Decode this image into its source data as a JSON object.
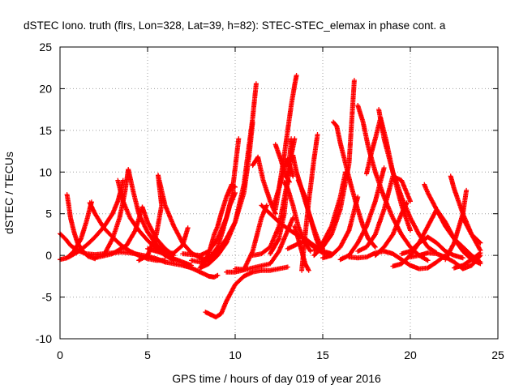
{
  "chart_data": {
    "type": "scatter",
    "title": "dSTEC Iono. truth (flrs, Lon=328, Lat=39, h=82): STEC-STEC_elemax in phase cont. a",
    "xlabel": "GPS time / hours of day 019 of year 2016",
    "ylabel": "dSTEC  / TECUs",
    "xlim": [
      0,
      25
    ],
    "ylim": [
      -10,
      25
    ],
    "xticks": [
      0,
      5,
      10,
      15,
      20,
      25
    ],
    "yticks": [
      -10,
      -5,
      0,
      5,
      10,
      15,
      20,
      25
    ],
    "xtick_labels": [
      "0",
      "5",
      "10",
      "15",
      "20",
      "25"
    ],
    "ytick_labels": [
      "-10",
      "-5",
      "0",
      "5",
      "10",
      "15",
      "20",
      "25"
    ],
    "grid": true,
    "marker": "+",
    "series_color": "#ff0000",
    "arcs": [
      {
        "x": [
          0.0,
          0.3,
          0.6,
          1.0,
          1.5,
          2.0,
          2.5,
          3.0,
          3.5,
          4.0,
          4.5,
          5.0,
          5.5,
          6.0
        ],
        "y": [
          2.6,
          2.0,
          1.2,
          0.6,
          0.2,
          0.1,
          0.2,
          0.3,
          0.4,
          0.3,
          0.1,
          -0.1,
          -0.4,
          -0.8
        ]
      },
      {
        "x": [
          0.4,
          0.5,
          0.6,
          0.8,
          1.0,
          1.3,
          1.6,
          2.0
        ],
        "y": [
          7.3,
          6.0,
          4.5,
          2.8,
          1.5,
          0.5,
          -0.1,
          -0.4
        ]
      },
      {
        "x": [
          0.0,
          0.4,
          0.8,
          1.2,
          1.5,
          1.7,
          1.8
        ],
        "y": [
          -0.5,
          -0.3,
          0.5,
          2.0,
          4.0,
          5.6,
          6.4
        ]
      },
      {
        "x": [
          1.7,
          2.0,
          2.5,
          3.0,
          3.5,
          4.0,
          4.5,
          5.0,
          5.5,
          6.0
        ],
        "y": [
          6.3,
          5.0,
          3.3,
          2.2,
          1.2,
          0.5,
          0.0,
          -0.4,
          -0.6,
          -0.6
        ]
      },
      {
        "x": [
          0.5,
          1.0,
          1.5,
          2.0,
          2.5,
          3.0,
          3.3,
          3.5,
          3.6
        ],
        "y": [
          -0.2,
          0.4,
          1.2,
          2.2,
          3.4,
          5.0,
          6.5,
          8.0,
          9.0
        ]
      },
      {
        "x": [
          3.3,
          3.6,
          4.0,
          4.5,
          5.0,
          5.5,
          6.0,
          6.5
        ],
        "y": [
          9.0,
          6.5,
          4.5,
          3.0,
          1.8,
          0.8,
          0.0,
          -0.6
        ]
      },
      {
        "x": [
          2.5,
          3.0,
          3.4,
          3.7,
          3.9
        ],
        "y": [
          0.0,
          2.0,
          4.5,
          7.5,
          10.3
        ]
      },
      {
        "x": [
          3.9,
          4.2,
          4.5,
          5.0,
          5.5,
          6.0,
          6.5,
          7.0,
          7.5
        ],
        "y": [
          10.3,
          7.5,
          5.0,
          2.8,
          1.3,
          0.3,
          -0.4,
          -0.8,
          -1.2
        ]
      },
      {
        "x": [
          2.0,
          3.0,
          3.8,
          4.3,
          4.7
        ],
        "y": [
          -0.3,
          0.2,
          1.2,
          3.0,
          5.8
        ]
      },
      {
        "x": [
          4.7,
          5.0,
          5.5,
          6.0,
          6.5
        ],
        "y": [
          5.8,
          4.0,
          2.0,
          0.8,
          0.0
        ]
      },
      {
        "x": [
          4.5,
          5.0,
          5.5,
          5.8,
          5.6
        ],
        "y": [
          -0.6,
          0.0,
          2.5,
          6.0,
          9.6
        ]
      },
      {
        "x": [
          5.6,
          6.0,
          6.5,
          7.0,
          7.5,
          8.0,
          8.5
        ],
        "y": [
          9.6,
          6.0,
          3.5,
          1.5,
          0.3,
          -0.3,
          -0.6
        ]
      },
      {
        "x": [
          5.0,
          5.5,
          6.0,
          6.5,
          7.0,
          7.3
        ],
        "y": [
          0.8,
          0.5,
          0.2,
          0.3,
          1.2,
          3.3
        ]
      },
      {
        "x": [
          6.0,
          6.5,
          7.0,
          7.5,
          8.0,
          8.5,
          8.8,
          9.0
        ],
        "y": [
          -0.8,
          -1.0,
          -1.2,
          -1.5,
          -2.0,
          -2.5,
          -2.6,
          -2.4
        ]
      },
      {
        "x": [
          7.5,
          8.0,
          8.5,
          9.0,
          9.3,
          9.7,
          10.0
        ],
        "y": [
          -0.6,
          -0.8,
          -0.5,
          1.0,
          3.0,
          6.0,
          7.5
        ]
      },
      {
        "x": [
          7.0,
          8.0,
          8.5,
          9.0,
          9.5,
          9.8,
          10.0,
          10.2
        ],
        "y": [
          0.2,
          0.0,
          0.5,
          2.0,
          4.5,
          7.0,
          10.5,
          14.0
        ]
      },
      {
        "x": [
          8.0,
          8.5,
          9.0,
          9.5,
          10.0,
          10.5,
          11.0,
          11.2
        ],
        "y": [
          -1.5,
          -1.0,
          0.0,
          1.5,
          4.0,
          8.5,
          16.5,
          20.6
        ]
      },
      {
        "x": [
          8.5,
          9.0,
          9.5,
          10.0,
          10.5,
          10.8,
          11.0
        ],
        "y": [
          -0.8,
          0.5,
          2.0,
          4.0,
          7.5,
          12.0,
          16.0
        ]
      },
      {
        "x": [
          8.0,
          8.5,
          8.8,
          9.0,
          9.2,
          9.5,
          9.8,
          10.0
        ],
        "y": [
          -1.5,
          0.2,
          2.5,
          3.5,
          5.0,
          7.0,
          8.5,
          8.2
        ]
      },
      {
        "x": [
          8.3,
          8.6,
          8.9,
          9.2,
          9.5,
          10.0,
          10.5,
          11.0,
          11.5,
          12.0,
          12.5,
          13.0
        ],
        "y": [
          -6.8,
          -7.1,
          -7.4,
          -7.0,
          -5.5,
          -3.5,
          -2.5,
          -2.0,
          -1.8,
          -1.8,
          -1.6,
          -1.4
        ]
      },
      {
        "x": [
          9.5,
          10.0,
          11.0,
          12.0,
          12.5,
          13.0,
          13.3
        ],
        "y": [
          -2.0,
          -2.0,
          -1.5,
          -1.0,
          0.5,
          3.0,
          4.5
        ]
      },
      {
        "x": [
          10.0,
          10.5,
          11.0,
          11.5,
          11.8
        ],
        "y": [
          -1.6,
          -1.7,
          0.5,
          4.5,
          6.0
        ]
      },
      {
        "x": [
          11.0,
          11.3,
          11.6,
          12.0,
          12.3
        ],
        "y": [
          10.8,
          11.8,
          9.0,
          6.5,
          5.0
        ]
      },
      {
        "x": [
          11.5,
          12.0,
          12.5,
          13.0,
          13.5,
          14.0,
          14.5,
          15.0,
          15.5
        ],
        "y": [
          6.0,
          5.0,
          4.0,
          3.2,
          2.5,
          2.0,
          1.2,
          0.5,
          0.2
        ]
      },
      {
        "x": [
          11.0,
          11.5,
          12.0,
          12.5,
          13.0,
          13.2
        ],
        "y": [
          0.0,
          0.2,
          1.0,
          3.5,
          9.0,
          14.0
        ]
      },
      {
        "x": [
          12.3,
          12.5,
          12.8,
          13.0,
          13.2,
          13.4,
          13.5
        ],
        "y": [
          5.5,
          8.0,
          12.0,
          15.0,
          18.0,
          20.5,
          21.6
        ]
      },
      {
        "x": [
          12.0,
          12.5,
          12.8,
          13.0,
          13.2,
          13.4
        ],
        "y": [
          0.2,
          2.0,
          5.0,
          9.0,
          12.0,
          14.0
        ]
      },
      {
        "x": [
          12.3,
          12.6,
          12.9,
          13.1
        ],
        "y": [
          13.3,
          11.5,
          9.5,
          8.8
        ]
      },
      {
        "x": [
          12.2,
          12.5,
          12.8,
          13.0,
          13.3
        ],
        "y": [
          6.0,
          8.0,
          10.5,
          11.6,
          9.5
        ]
      },
      {
        "x": [
          12.8,
          13.0,
          13.3,
          13.6,
          14.0,
          14.3
        ],
        "y": [
          8.8,
          8.0,
          6.0,
          3.5,
          1.5,
          0.5
        ]
      },
      {
        "x": [
          13.3,
          13.5,
          14.0,
          14.3,
          14.6,
          14.8
        ],
        "y": [
          12.0,
          10.0,
          6.5,
          4.5,
          2.2,
          1.0
        ]
      },
      {
        "x": [
          13.4,
          13.6,
          13.8,
          14.0,
          14.2
        ],
        "y": [
          3.5,
          2.0,
          0.5,
          -1.0,
          -1.8
        ]
      },
      {
        "x": [
          13.0,
          13.5,
          14.0,
          14.5,
          15.0,
          15.5
        ],
        "y": [
          0.8,
          1.3,
          1.8,
          1.0,
          0.3,
          0.0
        ]
      },
      {
        "x": [
          13.6,
          14.0,
          14.2,
          14.5,
          14.8,
          15.0
        ],
        "y": [
          9.0,
          7.0,
          5.0,
          3.2,
          1.5,
          0.8
        ]
      },
      {
        "x": [
          13.8,
          14.0,
          14.2,
          14.5,
          14.7
        ],
        "y": [
          -1.8,
          2.5,
          6.5,
          11.5,
          14.5
        ]
      },
      {
        "x": [
          14.5,
          15.0,
          15.5,
          16.0,
          16.5,
          16.8
        ],
        "y": [
          0.0,
          1.0,
          2.5,
          5.5,
          11.0,
          21.0
        ]
      },
      {
        "x": [
          14.5,
          15.0,
          15.5,
          16.0,
          16.3
        ],
        "y": [
          0.6,
          1.5,
          3.5,
          7.0,
          10.0
        ]
      },
      {
        "x": [
          15.0,
          15.5,
          16.0,
          16.5,
          17.0
        ],
        "y": [
          -0.3,
          0.0,
          1.0,
          3.0,
          7.0
        ]
      },
      {
        "x": [
          15.6,
          15.8,
          16.0,
          16.3,
          16.6,
          17.0,
          17.3,
          17.6,
          18.0
        ],
        "y": [
          16.0,
          15.5,
          13.5,
          11.0,
          8.5,
          5.5,
          3.5,
          2.0,
          1.0
        ]
      },
      {
        "x": [
          16.0,
          16.5,
          17.0,
          17.5,
          18.0,
          18.5
        ],
        "y": [
          -0.5,
          0.0,
          1.5,
          3.5,
          6.5,
          10.5
        ]
      },
      {
        "x": [
          17.0,
          17.3,
          17.6,
          18.0,
          18.5,
          19.0,
          19.5,
          20.0,
          20.5,
          21.0
        ],
        "y": [
          18.0,
          16.0,
          13.0,
          10.0,
          7.0,
          4.5,
          2.5,
          1.0,
          0.0,
          -0.6
        ]
      },
      {
        "x": [
          17.5,
          17.8,
          18.0,
          18.3,
          18.6,
          19.0,
          19.5,
          20.0
        ],
        "y": [
          9.8,
          12.5,
          14.0,
          16.5,
          14.0,
          10.0,
          6.0,
          3.0
        ]
      },
      {
        "x": [
          18.2,
          18.5,
          19.0,
          19.5,
          20.0,
          20.5,
          21.0,
          21.5
        ],
        "y": [
          17.5,
          14.0,
          10.0,
          7.0,
          4.5,
          2.5,
          1.0,
          0.3
        ]
      },
      {
        "x": [
          17.0,
          17.5,
          18.0,
          18.5,
          19.0,
          19.5,
          20.0
        ],
        "y": [
          0.5,
          1.0,
          2.5,
          5.5,
          9.5,
          9.0,
          6.5
        ]
      },
      {
        "x": [
          16.5,
          17.0,
          17.5,
          18.0,
          18.5,
          19.0,
          19.5,
          20.0,
          20.5,
          21.0,
          21.5,
          22.0
        ],
        "y": [
          -0.2,
          -0.3,
          -0.2,
          0.3,
          0.5,
          0.2,
          -0.5,
          -1.2,
          -1.6,
          -1.5,
          -0.8,
          0.0
        ]
      },
      {
        "x": [
          18.0,
          18.5,
          19.0,
          19.5,
          19.8
        ],
        "y": [
          0.0,
          1.0,
          2.5,
          5.0,
          6.3
        ]
      },
      {
        "x": [
          19.0,
          19.5,
          20.0,
          20.5,
          21.0,
          21.5,
          22.0,
          22.5,
          23.0,
          23.5,
          24.0
        ],
        "y": [
          -1.3,
          -1.0,
          0.0,
          1.5,
          3.5,
          5.5,
          4.0,
          2.0,
          0.5,
          -0.5,
          -1.0
        ]
      },
      {
        "x": [
          20.8,
          21.0,
          21.5,
          22.0,
          22.5,
          23.0,
          23.5,
          24.0
        ],
        "y": [
          8.5,
          7.5,
          5.5,
          3.5,
          2.0,
          1.0,
          0.0,
          -0.8
        ]
      },
      {
        "x": [
          22.3,
          22.5,
          23.0,
          23.5,
          24.0
        ],
        "y": [
          9.5,
          8.0,
          5.0,
          2.5,
          0.6
        ]
      },
      {
        "x": [
          22.0,
          22.5,
          23.0,
          23.2
        ],
        "y": [
          -0.5,
          1.5,
          5.0,
          7.8
        ]
      },
      {
        "x": [
          22.5,
          23.0,
          23.5,
          24.0
        ],
        "y": [
          -1.5,
          -1.2,
          -0.5,
          0.3
        ]
      },
      {
        "x": [
          23.0,
          23.5,
          24.0
        ],
        "y": [
          4.5,
          2.5,
          1.5
        ]
      },
      {
        "x": [
          20.0,
          20.5,
          21.0,
          21.5,
          22.0,
          22.5,
          23.0,
          23.5,
          24.0
        ],
        "y": [
          -0.2,
          0.0,
          0.3,
          0.2,
          -0.2,
          -0.8,
          -1.6,
          -1.2,
          0.0
        ]
      },
      {
        "x": [
          19.5,
          20.0,
          20.5,
          21.0,
          21.5,
          22.0,
          22.5,
          23.0
        ],
        "y": [
          0.2,
          0.5,
          1.5,
          2.2,
          1.5,
          0.5,
          0.0,
          -0.3
        ]
      }
    ]
  }
}
